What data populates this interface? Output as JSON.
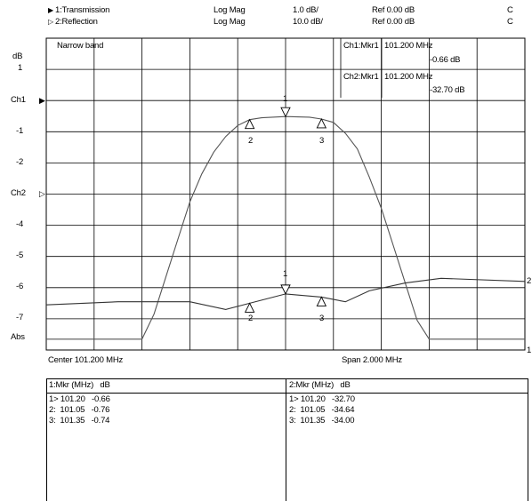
{
  "header": {
    "trace1": {
      "marker": "▶",
      "name": "1:Transmission",
      "format": "Log Mag",
      "scale": "1.0 dB/",
      "ref": "Ref  0.00 dB",
      "flag": "C"
    },
    "trace2": {
      "marker": "▷",
      "name": "2:Reflection",
      "format": "Log Mag",
      "scale": "10.0 dB/",
      "ref": "Ref  0.00 dB",
      "flag": "C"
    }
  },
  "plot": {
    "title": "Narrow band",
    "y_unit": "dB",
    "y_labels": [
      "1",
      "Ch1",
      "-1",
      "-2",
      "Ch2",
      "-4",
      "-5",
      "-6",
      "-7",
      "Abs"
    ],
    "ch1_pointer": "▶",
    "ch2_pointer": "▷",
    "right_label_ch2": "2",
    "right_label_ch1": "1",
    "center": "Center 101.200 MHz",
    "span": "Span 2.000 MHz",
    "marker_readout": [
      {
        "label": "Ch1:Mkr1",
        "freq": "101.200 MHz",
        "value": "-0.66 dB"
      },
      {
        "label": "Ch2:Mkr1",
        "freq": "101.200 MHz",
        "value": "-32.70 dB"
      }
    ],
    "marker_numbers": {
      "m1": "1",
      "m2": "2",
      "m3": "3"
    }
  },
  "chart_data": {
    "type": "line",
    "x_range_mhz": [
      100.2,
      102.2
    ],
    "series": [
      {
        "name": "1:Transmission",
        "scale": "1.0 dB/",
        "ref": "0.00 dB",
        "x": [
          100.2,
          100.6,
          100.65,
          100.7,
          100.75,
          100.8,
          100.85,
          100.9,
          100.95,
          101.0,
          101.05,
          101.1,
          101.2,
          101.3,
          101.35,
          101.4,
          101.45,
          101.5,
          101.55,
          101.6,
          101.65,
          101.7,
          101.75,
          101.8,
          102.2
        ],
        "y": [
          -7.8,
          -7.8,
          -7.0,
          -5.8,
          -4.6,
          -3.4,
          -2.5,
          -1.8,
          -1.3,
          -0.95,
          -0.76,
          -0.7,
          -0.66,
          -0.68,
          -0.74,
          -0.85,
          -1.2,
          -1.7,
          -2.6,
          -3.6,
          -4.8,
          -6.0,
          -7.2,
          -7.8,
          -7.8
        ]
      },
      {
        "name": "2:Reflection",
        "scale": "10.0 dB/",
        "ref": "0.00 dB",
        "x": [
          100.2,
          100.5,
          100.8,
          100.95,
          101.05,
          101.2,
          101.35,
          101.45,
          101.55,
          101.7,
          101.85,
          102.2
        ],
        "y": [
          -6.7,
          -6.6,
          -6.6,
          -6.85,
          -6.65,
          -6.35,
          -6.45,
          -6.6,
          -6.25,
          -6.0,
          -5.85,
          -5.95
        ]
      }
    ]
  },
  "markers_table": {
    "ch1": {
      "header": "1:Mkr (MHz)   dB",
      "rows": [
        "1> 101.20   -0.66",
        "2:  101.05   -0.76",
        "3:  101.35   -0.74"
      ]
    },
    "ch2": {
      "header": "2:Mkr (MHz)   dB",
      "rows": [
        "1> 101.20   -32.70",
        "2:  101.05   -34.64",
        "3:  101.35   -34.00"
      ]
    }
  }
}
